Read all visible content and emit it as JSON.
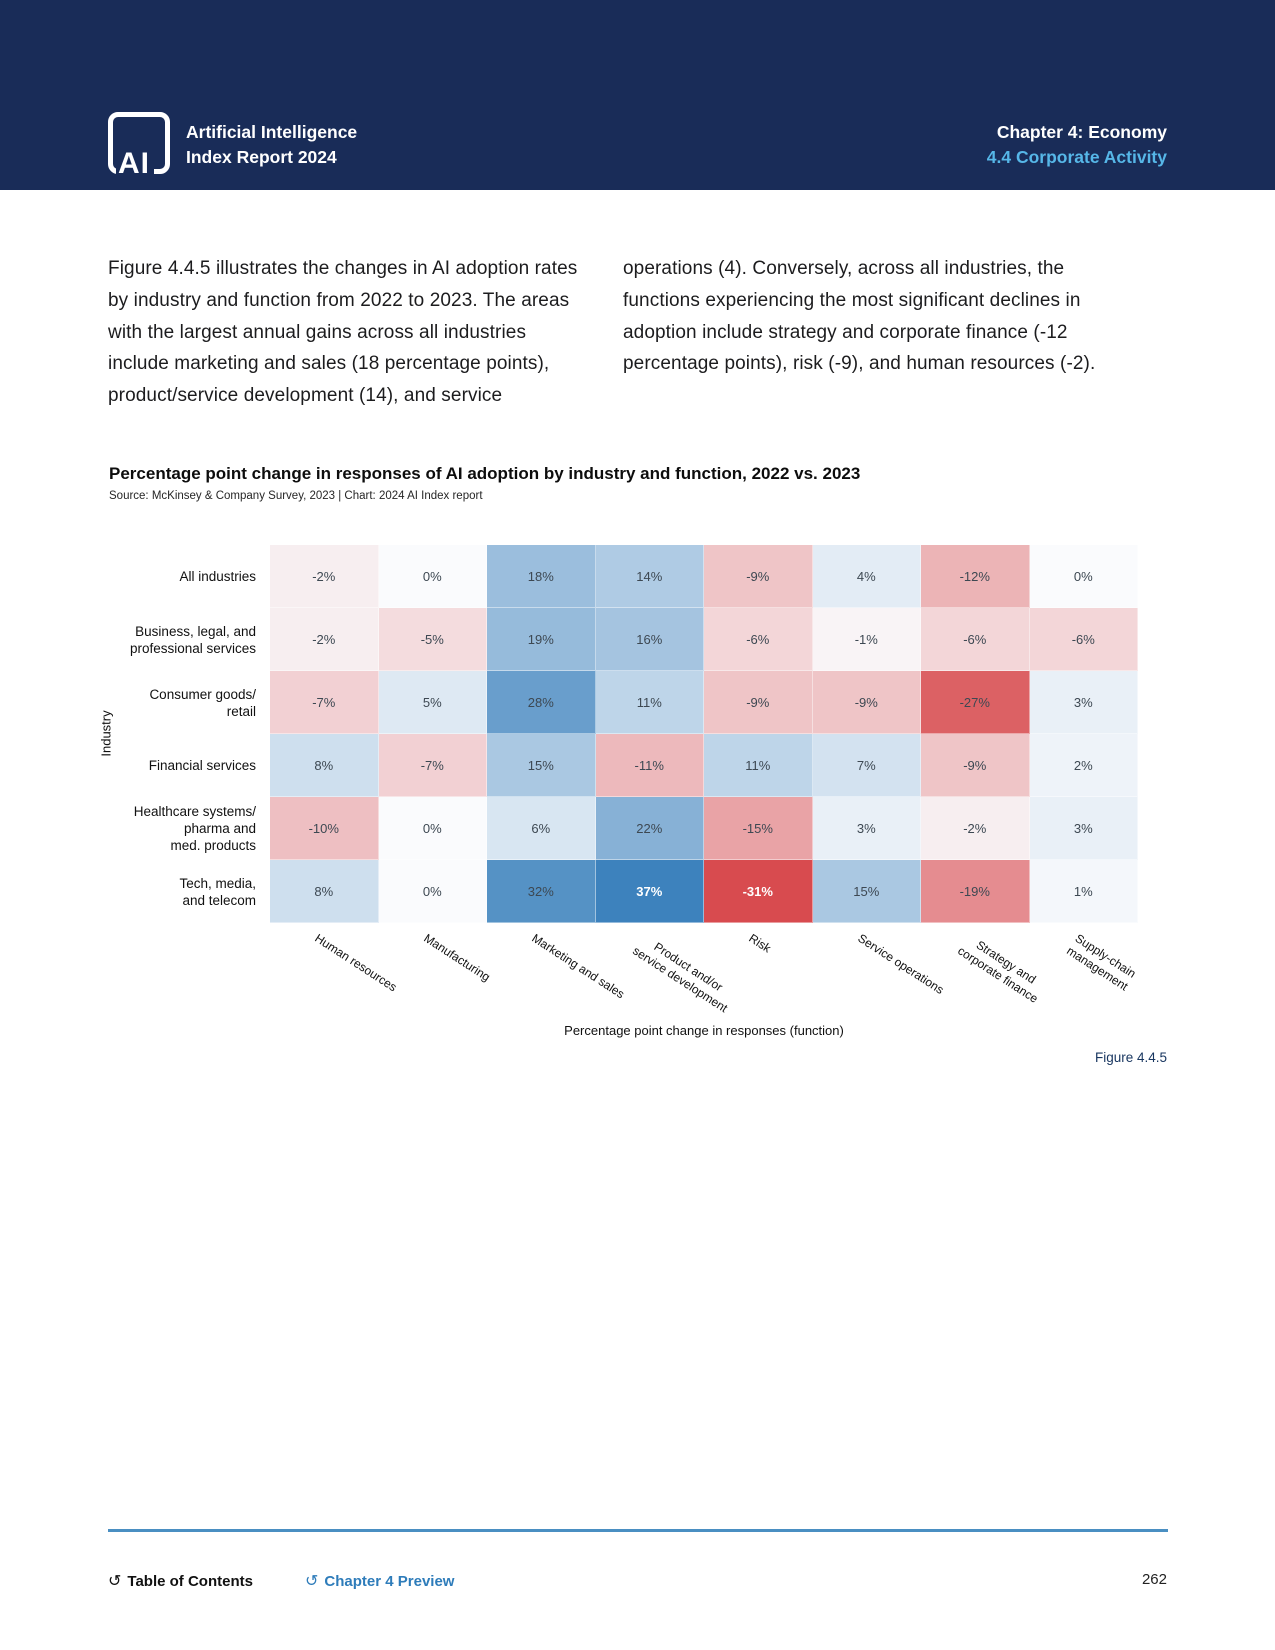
{
  "header": {
    "logo_text": "AI",
    "brand_line1": "Artificial Intelligence",
    "brand_line2": "Index Report 2024",
    "chapter": "Chapter 4: Economy",
    "section": "4.4 Corporate Activity",
    "colors": {
      "background": "#192c58",
      "section_accent": "#56b7e8"
    }
  },
  "paragraphs": {
    "left": "Figure 4.4.5 illustrates the changes in AI adoption rates by industry and function from 2022 to 2023. The areas with the largest annual gains across all industries include marketing and sales (18 percentage points), product/service development (14), and service",
    "right": "operations (4). Conversely, across all industries, the functions experiencing the most significant declines in adoption include strategy and corporate finance (-12 percentage points), risk (-9), and human resources (-2)."
  },
  "chart": {
    "title": "Percentage point change in responses of AI adoption by industry and function, 2022 vs. 2023",
    "source": "Source: McKinsey & Company Survey, 2023 | Chart: 2024 AI Index report",
    "y_axis_label": "Industry",
    "x_axis_label": "Percentage point change in responses (function)",
    "figure_caption": "Figure 4.4.5"
  },
  "chart_data": {
    "type": "heatmap",
    "rows": [
      "All industries",
      "Business, legal, and\nprofessional services",
      "Consumer goods/\nretail",
      "Financial services",
      "Healthcare systems/\npharma and\nmed. products",
      "Tech, media,\nand telecom"
    ],
    "columns": [
      "Human resources",
      "Manufacturing",
      "Marketing and sales",
      "Product and/or\nservice development",
      "Risk",
      "Service operations",
      "Strategy and\ncorporate finance",
      "Supply-chain\nmanagement"
    ],
    "values": [
      [
        -2,
        0,
        18,
        14,
        -9,
        4,
        -12,
        0
      ],
      [
        -2,
        -5,
        19,
        16,
        -6,
        -1,
        -6,
        -6
      ],
      [
        -7,
        5,
        28,
        11,
        -9,
        -9,
        -27,
        3
      ],
      [
        8,
        -7,
        15,
        -11,
        11,
        7,
        -9,
        2
      ],
      [
        -10,
        0,
        6,
        22,
        -15,
        3,
        -2,
        3
      ],
      [
        8,
        0,
        32,
        37,
        -31,
        15,
        -19,
        1
      ]
    ],
    "value_suffix": "%",
    "scale": {
      "min": -31,
      "max": 37,
      "negative_color": "#d84b4f",
      "positive_color": "#3d82bd",
      "neutral_color": "#fafbfd"
    },
    "legend_position": "none",
    "grid": false
  },
  "footer": {
    "toc_label": "Table of Contents",
    "preview_label": "Chapter 4 Preview",
    "page_number": "262",
    "link_color": "#2e7cba"
  }
}
